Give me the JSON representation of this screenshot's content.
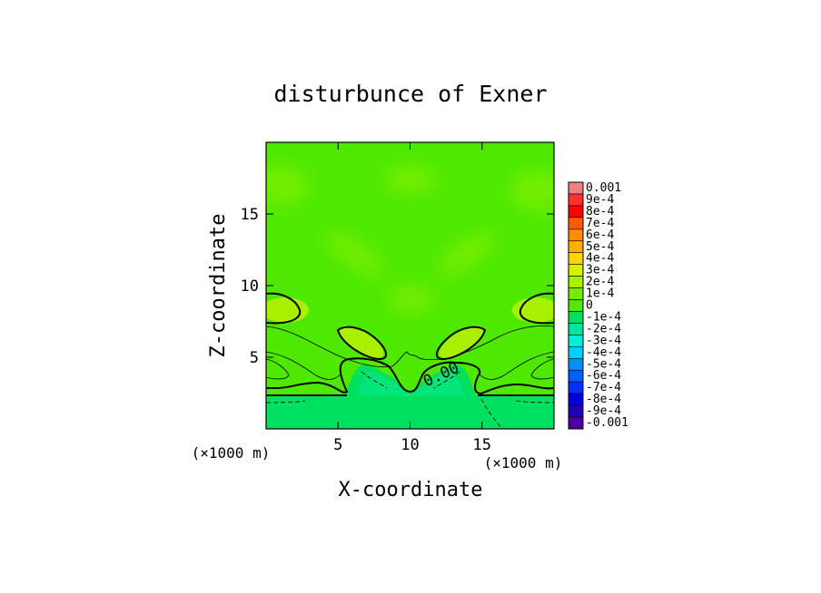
{
  "chart_data": {
    "type": "heatmap",
    "title": "disturbunce of Exner",
    "xlabel": "X-coordinate",
    "ylabel": "Z-coordinate",
    "x_unit_label": "(×1000 m)",
    "z_unit_label": "(×1000 m)",
    "xlim": [
      0,
      20
    ],
    "ylim": [
      0,
      20
    ],
    "xticks": [
      5,
      10,
      15
    ],
    "yticks": [
      5,
      10,
      15
    ],
    "contour_label": "0.00",
    "colorbar": {
      "labels": [
        "0.001",
        "9e-4",
        "8e-4",
        "7e-4",
        "6e-4",
        "5e-4",
        "4e-4",
        "3e-4",
        "2e-4",
        "1e-4",
        "0",
        "-1e-4",
        "-2e-4",
        "-3e-4",
        "-4e-4",
        "-5e-4",
        "-6e-4",
        "-7e-4",
        "-8e-4",
        "-9e-4",
        "-0.001"
      ],
      "colors": [
        "#f08080",
        "#ff3030",
        "#ff0000",
        "#ff5a00",
        "#ff8c00",
        "#ffb000",
        "#ffd700",
        "#d7f000",
        "#a8ef00",
        "#74ee00",
        "#4ee800",
        "#00e060",
        "#00e8a0",
        "#00eed8",
        "#00d0ff",
        "#0090ff",
        "#0060ff",
        "#0030ff",
        "#0000e0",
        "#2000b0",
        "#5000a0"
      ]
    }
  }
}
